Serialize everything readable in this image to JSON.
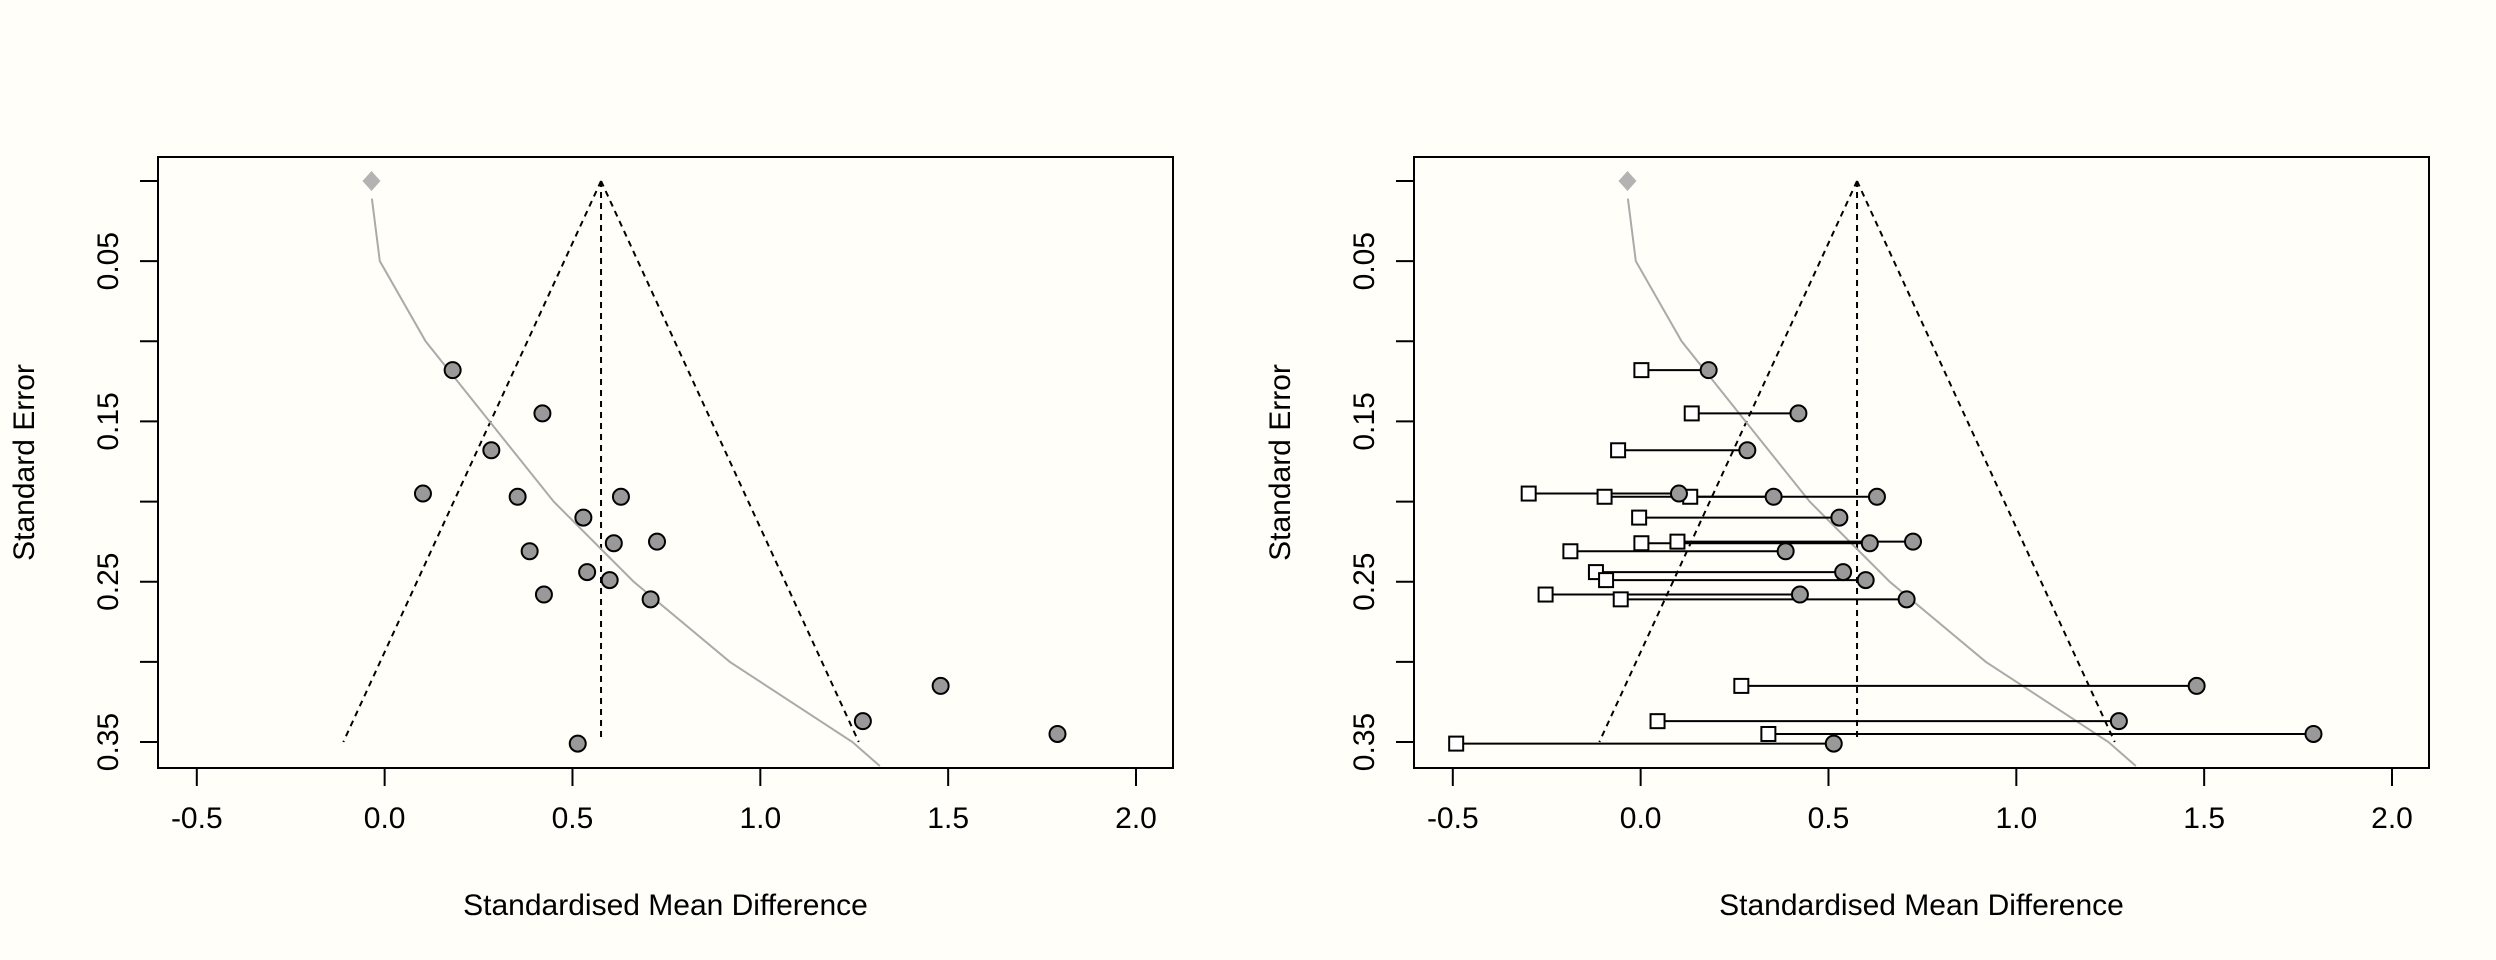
{
  "colors": {
    "background": "#fffef9",
    "observed_fill": "#999999",
    "imputed_fill": "#ffffff",
    "curve": "#aaaaaa",
    "diamond": "#b3b3b3"
  },
  "chart_data": [
    {
      "type": "scatter",
      "title": "",
      "xlabel": "Standardised Mean Difference",
      "ylabel": "Standard Error",
      "xlim": [
        -0.6,
        2.1
      ],
      "ylim": [
        0.365,
        -0.015
      ],
      "y_reversed": true,
      "xticks": [
        -0.5,
        0.0,
        0.5,
        1.0,
        1.5,
        2.0
      ],
      "xtick_labels": [
        "-0.5",
        "0.0",
        "0.5",
        "1.0",
        "1.5",
        "2.0"
      ],
      "yticks": [
        0,
        0.05,
        0.1,
        0.15,
        0.2,
        0.25,
        0.3,
        0.35
      ],
      "ytick_labels": [
        "",
        "0.05",
        "",
        "0.15",
        "",
        "0.25",
        "",
        "0.35"
      ],
      "pooled_estimate": 0.576,
      "funnel_z": 1.96,
      "funnel_max_se": 0.35,
      "diamond": {
        "x": -0.035,
        "se": 0
      },
      "curve": [
        [
          -0.034,
          0.011
        ],
        [
          -0.013,
          0.05
        ],
        [
          0.109,
          0.1
        ],
        [
          0.279,
          0.15
        ],
        [
          0.45,
          0.2
        ],
        [
          0.663,
          0.25
        ],
        [
          0.919,
          0.3
        ],
        [
          1.245,
          0.35
        ],
        [
          1.318,
          0.365
        ]
      ],
      "points": [
        {
          "x": 0.181,
          "se": 0.118
        },
        {
          "x": 0.42,
          "se": 0.145
        },
        {
          "x": 0.284,
          "se": 0.168
        },
        {
          "x": 0.102,
          "se": 0.195
        },
        {
          "x": 0.354,
          "se": 0.197
        },
        {
          "x": 0.629,
          "se": 0.197
        },
        {
          "x": 0.529,
          "se": 0.21
        },
        {
          "x": 0.725,
          "se": 0.225
        },
        {
          "x": 0.61,
          "se": 0.226
        },
        {
          "x": 0.386,
          "se": 0.231
        },
        {
          "x": 0.539,
          "se": 0.244
        },
        {
          "x": 0.599,
          "se": 0.249
        },
        {
          "x": 0.424,
          "se": 0.258
        },
        {
          "x": 0.708,
          "se": 0.261
        },
        {
          "x": 1.48,
          "se": 0.315
        },
        {
          "x": 1.273,
          "se": 0.337
        },
        {
          "x": 1.791,
          "se": 0.345
        },
        {
          "x": 0.514,
          "se": 0.351
        }
      ]
    },
    {
      "type": "scatter",
      "title": "",
      "xlabel": "Standardised Mean Difference",
      "ylabel": "Standard Error",
      "xlim": [
        -0.6,
        2.1
      ],
      "ylim": [
        0.365,
        -0.015
      ],
      "y_reversed": true,
      "xticks": [
        -0.5,
        0.0,
        0.5,
        1.0,
        1.5,
        2.0
      ],
      "xtick_labels": [
        "-0.5",
        "0.0",
        "0.5",
        "1.0",
        "1.5",
        "2.0"
      ],
      "yticks": [
        0,
        0.05,
        0.1,
        0.15,
        0.2,
        0.25,
        0.3,
        0.35
      ],
      "ytick_labels": [
        "",
        "0.05",
        "",
        "0.15",
        "",
        "0.25",
        "",
        "0.35"
      ],
      "pooled_estimate": 0.576,
      "funnel_z": 1.96,
      "funnel_max_se": 0.35,
      "diamond": {
        "x": -0.035,
        "se": 0
      },
      "curve": [
        [
          -0.034,
          0.011
        ],
        [
          -0.013,
          0.05
        ],
        [
          0.109,
          0.1
        ],
        [
          0.279,
          0.15
        ],
        [
          0.45,
          0.2
        ],
        [
          0.663,
          0.25
        ],
        [
          0.919,
          0.3
        ],
        [
          1.245,
          0.35
        ],
        [
          1.318,
          0.365
        ]
      ],
      "points": [
        {
          "x": 0.181,
          "se": 0.118,
          "adjusted": 0.002
        },
        {
          "x": 0.42,
          "se": 0.145,
          "adjusted": 0.136
        },
        {
          "x": 0.284,
          "se": 0.168,
          "adjusted": -0.06
        },
        {
          "x": 0.102,
          "se": 0.195,
          "adjusted": -0.298
        },
        {
          "x": 0.354,
          "se": 0.197,
          "adjusted": 0.132
        },
        {
          "x": 0.629,
          "se": 0.197,
          "adjusted": -0.096
        },
        {
          "x": 0.529,
          "se": 0.21,
          "adjusted": -0.004
        },
        {
          "x": 0.725,
          "se": 0.225,
          "adjusted": 0.098
        },
        {
          "x": 0.61,
          "se": 0.226,
          "adjusted": 0.002
        },
        {
          "x": 0.386,
          "se": 0.231,
          "adjusted": -0.187
        },
        {
          "x": 0.539,
          "se": 0.244,
          "adjusted": -0.119
        },
        {
          "x": 0.599,
          "se": 0.249,
          "adjusted": -0.092
        },
        {
          "x": 0.424,
          "se": 0.258,
          "adjusted": -0.253
        },
        {
          "x": 0.708,
          "se": 0.261,
          "adjusted": -0.053
        },
        {
          "x": 1.48,
          "se": 0.315,
          "adjusted": 0.268
        },
        {
          "x": 1.273,
          "se": 0.337,
          "adjusted": 0.045
        },
        {
          "x": 1.791,
          "se": 0.345,
          "adjusted": 0.34
        },
        {
          "x": 0.514,
          "se": 0.351,
          "adjusted": -0.491
        }
      ]
    }
  ]
}
